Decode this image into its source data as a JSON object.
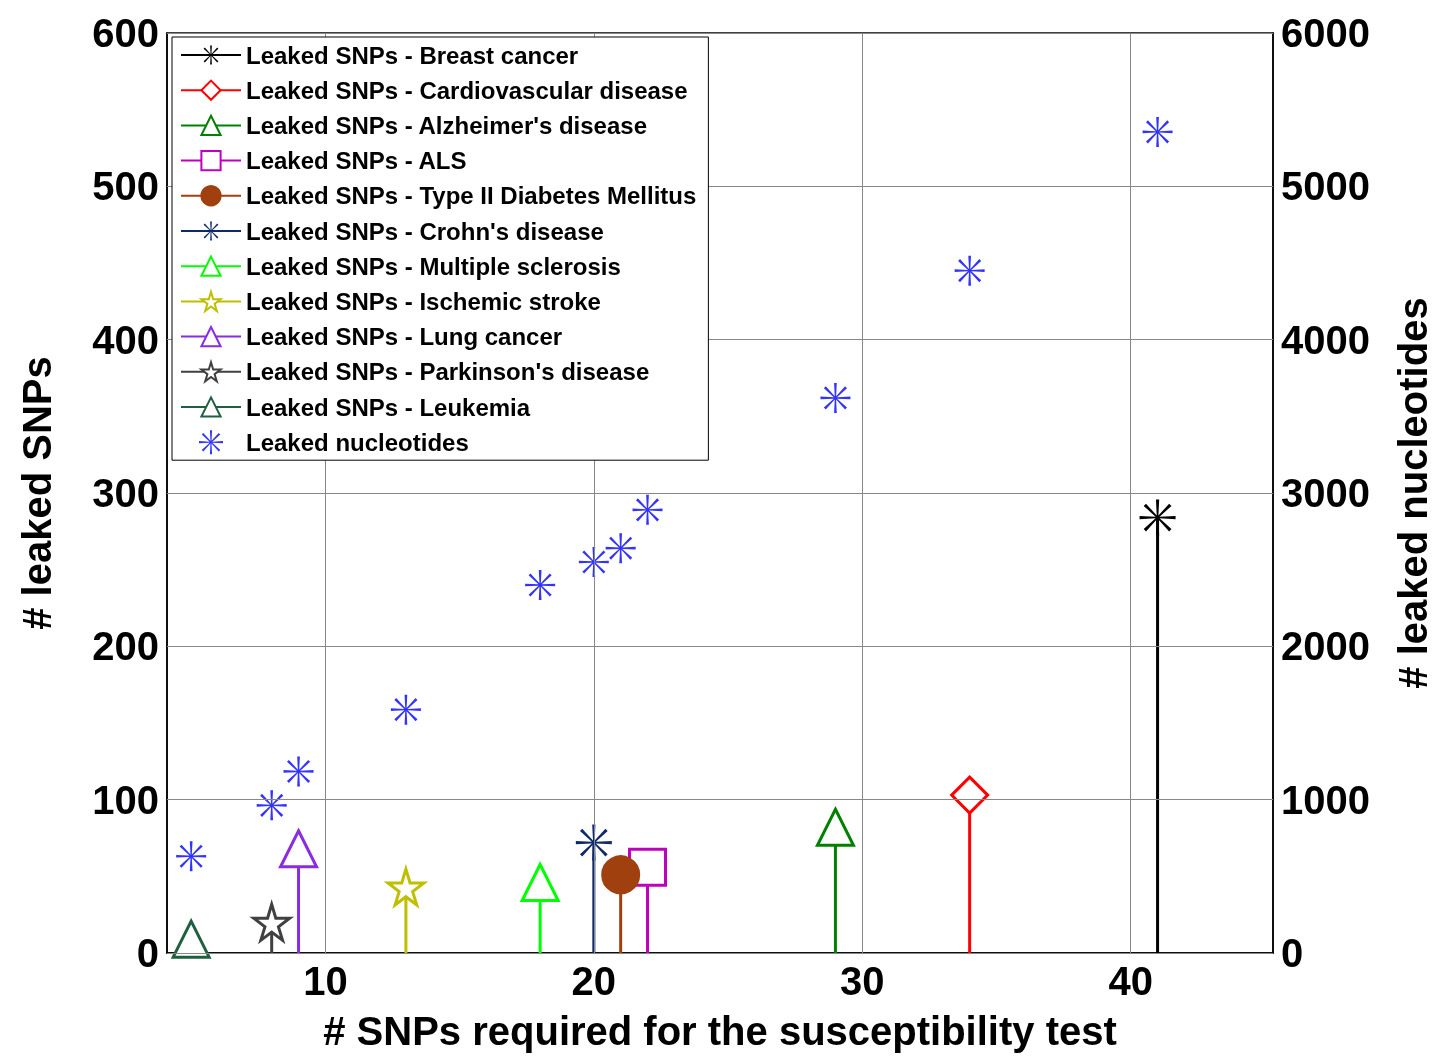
{
  "chart_data": {
    "type": "lollipop",
    "xlabel": "# SNPs required for the susceptibility test",
    "ylabel": "# leaked SNPs",
    "y2label": "# leaked nucleotides",
    "xlim": [
      4.1,
      45.3
    ],
    "xticks": [
      10,
      20,
      30,
      40
    ],
    "ylim": [
      0,
      600
    ],
    "yticks": [
      0,
      100,
      200,
      300,
      400,
      500,
      600
    ],
    "y2lim": [
      0,
      6000
    ],
    "y2ticks": [
      0,
      1000,
      2000,
      3000,
      4000,
      5000,
      6000
    ],
    "grid": true,
    "legend": "top left",
    "line_style": "solid",
    "series": [
      {
        "name": "Leaked SNPs - Breast cancer",
        "color": "#000000",
        "marker": "cross",
        "x": [
          41
        ],
        "values": [
          284
        ]
      },
      {
        "name": "Leaked SNPs - Cardiovascular disease",
        "color": "#ff0000",
        "marker": "diamond",
        "x": [
          34
        ],
        "values": [
          103
        ]
      },
      {
        "name": "Leaked SNPs - Alzheimer's disease",
        "color": "#008000",
        "marker": "triangle",
        "x": [
          29
        ],
        "values": [
          82
        ]
      },
      {
        "name": "Leaked SNPs - ALS",
        "color": "#bf00bf",
        "marker": "square",
        "x": [
          22
        ],
        "values": [
          56
        ]
      },
      {
        "name": "Leaked SNPs - Type II Diabetes Mellitus",
        "color": "#a0400f",
        "marker": "circle",
        "x": [
          21
        ],
        "values": [
          51
        ]
      },
      {
        "name": "Leaked SNPs - Crohn's disease",
        "color": "#0f2a6b",
        "marker": "cross",
        "x": [
          20
        ],
        "values": [
          72
        ]
      },
      {
        "name": "Leaked SNPs - Multiple sclerosis",
        "color": "#00ff00",
        "marker": "triangle",
        "x": [
          18
        ],
        "values": [
          46
        ]
      },
      {
        "name": "Leaked SNPs - Ischemic stroke",
        "color": "#bfbf00",
        "marker": "star",
        "x": [
          13
        ],
        "values": [
          43
        ]
      },
      {
        "name": "Leaked SNPs - Lung cancer",
        "color": "#8a2be2",
        "marker": "triangle",
        "x": [
          9
        ],
        "values": [
          68
        ]
      },
      {
        "name": "Leaked SNPs - Parkinson's disease",
        "color": "#404040",
        "marker": "star",
        "x": [
          8
        ],
        "values": [
          20
        ]
      },
      {
        "name": "Leaked SNPs - Leukemia",
        "color": "#1f5f3f",
        "marker": "triangle",
        "x": [
          5
        ],
        "values": [
          9
        ]
      },
      {
        "name": "Leaked nucleotides",
        "type": "scatter",
        "axis": "y2",
        "color": "#0000ff",
        "marker": "cross",
        "x": [
          5,
          8,
          9,
          13,
          18,
          20,
          21,
          22,
          29,
          34,
          41
        ],
        "values": [
          631,
          963,
          1184,
          1587,
          2400,
          2550,
          2640,
          2890,
          3620,
          4450,
          5355
        ]
      }
    ]
  }
}
